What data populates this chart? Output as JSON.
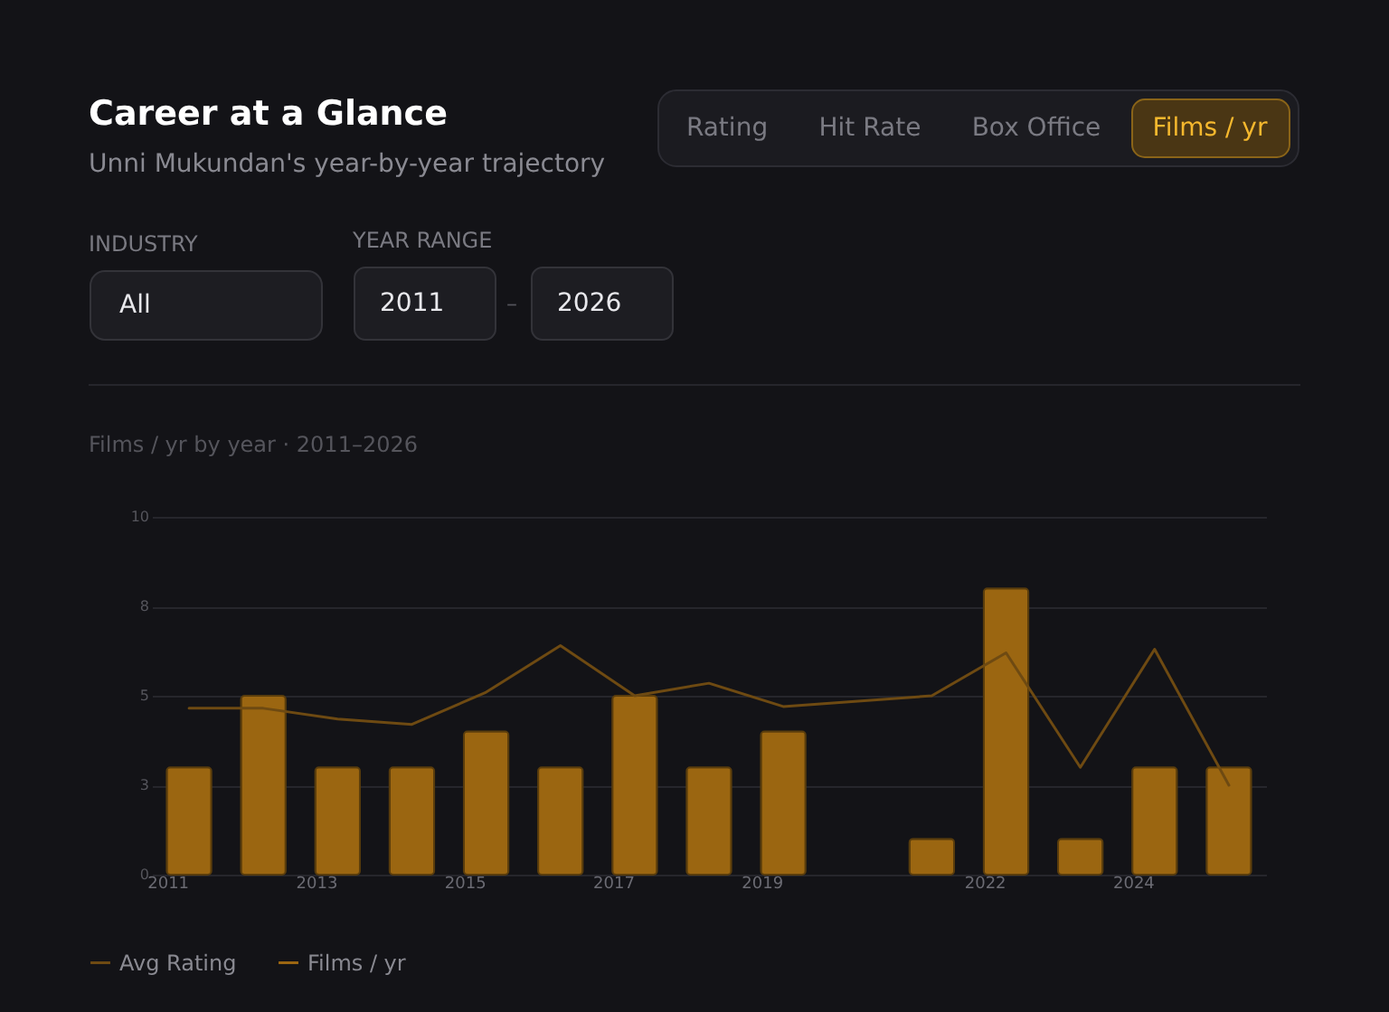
{
  "chart_data": {
    "type": "bar",
    "title": "Career at a Glance",
    "subtitle": "Unni Mukundan's year-by-year trajectory",
    "annotations": [
      "Rating",
      "Hit Rate",
      "Box Office",
      "Films / yr",
      "INDUSTRY",
      "All",
      "YEAR RANGE",
      "2011",
      "–",
      "2026",
      "Films / yr by year · 2011–2026"
    ],
    "categories": [
      "2011",
      null,
      "2013",
      null,
      "2015",
      null,
      "2017",
      null,
      "2019",
      null,
      null,
      "2022",
      null,
      "2024",
      null
    ],
    "series": [
      {
        "name": "Avg Rating",
        "type": "line",
        "color": "#6e4a12",
        "values": [
          4.65,
          4.65,
          4.35,
          4.2,
          5.1,
          6.4,
          5.0,
          5.35,
          4.7,
          null,
          5.0,
          6.2,
          3.0,
          6.3,
          2.5
        ]
      },
      {
        "name": "Films / yr",
        "color": "#9b6611",
        "values": [
          3,
          5,
          3,
          3,
          4,
          3,
          5,
          3,
          4,
          null,
          1,
          8,
          1,
          3,
          3
        ]
      }
    ],
    "ylim": [
      0,
      10
    ],
    "yticks": [
      0,
      {
        "value": 2.5,
        "label": "3"
      },
      5,
      {
        "value": 7.5,
        "label": "8"
      },
      10
    ],
    "grid": "y",
    "legend": "bottom left"
  }
}
